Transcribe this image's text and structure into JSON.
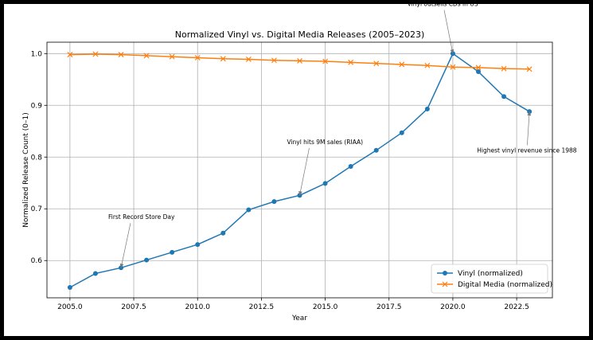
{
  "chart_data": {
    "type": "line",
    "title": "Normalized Vinyl vs. Digital Media Releases (2005–2023)",
    "xlabel": "Year",
    "ylabel": "Normalized Release Count (0–1)",
    "xlim": [
      2004.1,
      2023.9
    ],
    "ylim": [
      0.528,
      1.022
    ],
    "xticks": [
      2005.0,
      2007.5,
      2010.0,
      2012.5,
      2015.0,
      2017.5,
      2020.0,
      2022.5
    ],
    "xtick_labels": [
      "2005.0",
      "2007.5",
      "2010.0",
      "2012.5",
      "2015.0",
      "2017.5",
      "2020.0",
      "2022.5"
    ],
    "yticks": [
      0.6,
      0.7,
      0.8,
      0.9,
      1.0
    ],
    "ytick_labels": [
      "0.6",
      "0.7",
      "0.8",
      "0.9",
      "1.0"
    ],
    "grid": true,
    "legend_position": "lower-right",
    "x": [
      2005,
      2006,
      2007,
      2008,
      2009,
      2010,
      2011,
      2012,
      2013,
      2014,
      2015,
      2016,
      2017,
      2018,
      2019,
      2020,
      2021,
      2022,
      2023
    ],
    "series": [
      {
        "name": "Vinyl (normalized)",
        "color": "#1f77b4",
        "marker": "circle",
        "values": [
          0.548,
          0.575,
          0.586,
          0.601,
          0.616,
          0.631,
          0.653,
          0.698,
          0.714,
          0.726,
          0.749,
          0.782,
          0.813,
          0.847,
          0.893,
          1.0,
          0.965,
          0.917,
          0.888
        ]
      },
      {
        "name": "Digital Media (normalized)",
        "color": "#ff7f0e",
        "marker": "x",
        "values": [
          0.998,
          0.999,
          0.998,
          0.996,
          0.994,
          0.992,
          0.99,
          0.989,
          0.987,
          0.986,
          0.985,
          0.983,
          0.981,
          0.979,
          0.977,
          0.974,
          0.973,
          0.971,
          0.97
        ]
      }
    ],
    "annotations": [
      {
        "text": "First Record Store Day",
        "point": [
          2007,
          0.586
        ],
        "label_at": [
          2006.5,
          0.68
        ],
        "anchor": "start"
      },
      {
        "text": "Vinyl hits 9M sales (RIAA)",
        "point": [
          2014,
          0.726
        ],
        "label_at": [
          2013.5,
          0.825
        ],
        "anchor": "start"
      },
      {
        "text": "Vinyl outsells CDs in US",
        "point": [
          2020,
          1.0
        ],
        "label_at": [
          2019.6,
          1.092
        ],
        "anchor": "middle"
      },
      {
        "text": "Highest vinyl revenue since 1988",
        "point": [
          2023,
          0.888
        ],
        "label_at": [
          2022.9,
          0.809
        ],
        "anchor": "middle"
      }
    ]
  }
}
